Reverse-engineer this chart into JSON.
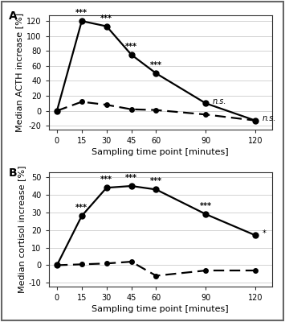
{
  "x": [
    0,
    15,
    30,
    45,
    60,
    90,
    120
  ],
  "panel_A": {
    "title": "A",
    "ylabel": "Median ACTH increase [%]",
    "solid_line": [
      0,
      120,
      113,
      75,
      50,
      10,
      -13
    ],
    "dashed_line": [
      0,
      12,
      8,
      2,
      1,
      -5,
      -13
    ],
    "ylim": [
      -25,
      128
    ],
    "yticks": [
      -20,
      0,
      20,
      40,
      60,
      80,
      100,
      120
    ],
    "annotations": [
      "***",
      "***",
      "***",
      "***",
      "n.s.",
      "n.s."
    ],
    "annot_offsets": [
      3,
      3,
      3,
      3,
      3,
      3
    ]
  },
  "panel_B": {
    "title": "B",
    "ylabel": "Median cortisol increase [%]",
    "solid_line": [
      0,
      28,
      44,
      45,
      43,
      29,
      17
    ],
    "dashed_line": [
      0,
      0.5,
      1,
      2,
      -6,
      -3,
      -3
    ],
    "ylim": [
      -12,
      53
    ],
    "yticks": [
      -10,
      0,
      10,
      20,
      30,
      40,
      50
    ],
    "annotations": [
      "***",
      "***",
      "***",
      "***",
      "***",
      "*"
    ],
    "annot_offsets": [
      2,
      2,
      2,
      2,
      2,
      2
    ]
  },
  "xlabel": "Sampling time point [minutes]",
  "bg_color": "#ffffff",
  "line_color": "#000000",
  "linewidth": 1.6,
  "solid_markersize": 5,
  "dashed_markersize": 4,
  "annot_fontsize": 7,
  "label_fontsize": 8,
  "tick_fontsize": 7,
  "title_fontsize": 10,
  "grid_color": "#cccccc",
  "border_color": "#aaaaaa"
}
